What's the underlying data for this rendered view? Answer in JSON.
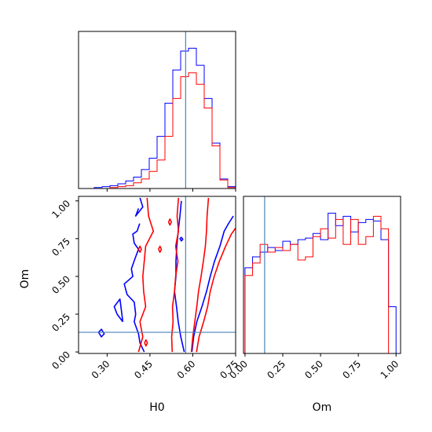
{
  "chart_data": {
    "type": "corner",
    "parameters": [
      "H0",
      "Om"
    ],
    "xlabels": {
      "H0": "H0",
      "Om": "Om"
    },
    "ylabels": {
      "Om": "Om"
    },
    "ranges": {
      "H0": [
        0.2,
        0.75
      ],
      "Om": [
        -0.01,
        1.03
      ]
    },
    "ticks": {
      "H0": {
        "values": [
          0.3,
          0.45,
          0.6,
          0.75
        ],
        "labels": [
          "0.30",
          "0.45",
          "0.60",
          "0.75"
        ]
      },
      "Om": {
        "values": [
          0.0,
          0.25,
          0.5,
          0.75,
          1.0
        ],
        "labels": [
          "0.00",
          "0.25",
          "0.50",
          "0.75",
          "1.00"
        ]
      }
    },
    "truth": {
      "H0": 0.575,
      "Om": 0.13
    },
    "colors": {
      "blue": "#0000ff",
      "red": "#ff0000",
      "truth": "#4a84b8"
    },
    "histograms": {
      "H0": {
        "bin_edges": [
          0.2,
          0.2275,
          0.255,
          0.2825,
          0.31,
          0.3375,
          0.365,
          0.3925,
          0.42,
          0.4475,
          0.475,
          0.5025,
          0.53,
          0.5575,
          0.585,
          0.6125,
          0.64,
          0.6675,
          0.695,
          0.7225,
          0.75
        ],
        "series": [
          {
            "color": "blue",
            "counts": [
              0,
              0,
              1,
              2,
              3,
              5,
              8,
              12,
              20,
              32,
              55,
              90,
              125,
              145,
              148,
              130,
              95,
              48,
              10,
              2
            ]
          },
          {
            "color": "red",
            "counts": [
              0,
              0,
              0,
              0,
              1,
              2,
              3,
              6,
              10,
              18,
              30,
              55,
              95,
              118,
              122,
              110,
              85,
              45,
              9,
              1
            ]
          }
        ]
      },
      "Om": {
        "bin_edges": [
          0.0,
          0.05,
          0.1,
          0.15,
          0.2,
          0.25,
          0.3,
          0.35,
          0.4,
          0.45,
          0.5,
          0.55,
          0.6,
          0.65,
          0.7,
          0.75,
          0.8,
          0.85,
          0.9,
          0.95,
          1.0
        ],
        "series": [
          {
            "color": "blue",
            "counts": [
              55,
              62,
              65,
              68,
              66,
              72,
              70,
              73,
              74,
              77,
              73,
              90,
              82,
              88,
              78,
              84,
              86,
              85,
              73,
              30
            ]
          },
          {
            "color": "red",
            "counts": [
              50,
              58,
              70,
              65,
              68,
              66,
              70,
              60,
              62,
              75,
              80,
              74,
              86,
              70,
              86,
              70,
              75,
              88,
              80,
              0
            ]
          }
        ]
      }
    },
    "contours": [
      {
        "color": "blue",
        "lines": [
          [
            [
              0.57,
              0.0
            ],
            [
              0.558,
              0.1
            ],
            [
              0.549,
              0.2
            ],
            [
              0.543,
              0.3
            ],
            [
              0.536,
              0.4
            ],
            [
              0.541,
              0.5
            ],
            [
              0.541,
              0.6
            ],
            [
              0.544,
              0.7
            ],
            [
              0.549,
              0.8
            ],
            [
              0.555,
              0.9
            ],
            [
              0.56,
              1.0
            ]
          ],
          [
            [
              0.597,
              0.0
            ],
            [
              0.603,
              0.1
            ],
            [
              0.614,
              0.2
            ],
            [
              0.632,
              0.3
            ],
            [
              0.648,
              0.4
            ],
            [
              0.661,
              0.5
            ],
            [
              0.676,
              0.6
            ],
            [
              0.695,
              0.7
            ],
            [
              0.71,
              0.8
            ],
            [
              0.725,
              0.85
            ],
            [
              0.742,
              0.9
            ]
          ],
          [
            [
              0.414,
              0.85
            ],
            [
              0.405,
              0.8
            ],
            [
              0.39,
              0.78
            ],
            [
              0.395,
              0.72
            ],
            [
              0.41,
              0.68
            ],
            [
              0.398,
              0.62
            ],
            [
              0.385,
              0.55
            ],
            [
              0.39,
              0.5
            ],
            [
              0.36,
              0.45
            ],
            [
              0.37,
              0.38
            ],
            [
              0.395,
              0.33
            ],
            [
              0.4,
              0.25
            ],
            [
              0.395,
              0.2
            ],
            [
              0.41,
              0.12
            ],
            [
              0.415,
              0.06
            ],
            [
              0.43,
              0.0
            ]
          ],
          [
            [
              0.355,
              0.2
            ],
            [
              0.335,
              0.25
            ],
            [
              0.325,
              0.3
            ],
            [
              0.345,
              0.35
            ],
            [
              0.355,
              0.2
            ]
          ],
          [
            [
              0.27,
              0.13
            ],
            [
              0.28,
              0.1
            ],
            [
              0.29,
              0.12
            ],
            [
              0.28,
              0.15
            ],
            [
              0.27,
              0.13
            ]
          ],
          [
            [
              0.56,
              0.76
            ],
            [
              0.565,
              0.745
            ],
            [
              0.56,
              0.735
            ],
            [
              0.555,
              0.75
            ],
            [
              0.56,
              0.76
            ]
          ],
          [
            [
              0.41,
              0.95
            ],
            [
              0.4,
              0.9
            ],
            [
              0.425,
              0.96
            ],
            [
              0.415,
              1.02
            ]
          ]
        ]
      },
      {
        "color": "red",
        "lines": [
          [
            [
              0.595,
              0.0
            ],
            [
              0.6,
              0.1
            ],
            [
              0.607,
              0.2
            ],
            [
              0.614,
              0.3
            ],
            [
              0.62,
              0.4
            ],
            [
              0.629,
              0.5
            ],
            [
              0.637,
              0.6
            ],
            [
              0.644,
              0.7
            ],
            [
              0.648,
              0.8
            ],
            [
              0.65,
              0.9
            ],
            [
              0.655,
              1.02
            ]
          ],
          [
            [
              0.613,
              0.0
            ],
            [
              0.622,
              0.1
            ],
            [
              0.638,
              0.2
            ],
            [
              0.652,
              0.3
            ],
            [
              0.661,
              0.4
            ],
            [
              0.675,
              0.5
            ],
            [
              0.693,
              0.6
            ],
            [
              0.715,
              0.7
            ],
            [
              0.735,
              0.78
            ],
            [
              0.75,
              0.82
            ]
          ],
          [
            [
              0.41,
              0.0
            ],
            [
              0.425,
              0.1
            ],
            [
              0.415,
              0.2
            ],
            [
              0.435,
              0.3
            ],
            [
              0.428,
              0.4
            ],
            [
              0.425,
              0.5
            ],
            [
              0.43,
              0.6
            ],
            [
              0.435,
              0.7
            ],
            [
              0.462,
              0.8
            ],
            [
              0.445,
              0.9
            ],
            [
              0.44,
              1.02
            ]
          ],
          [
            [
              0.528,
              0.0
            ],
            [
              0.526,
              0.1
            ],
            [
              0.531,
              0.2
            ],
            [
              0.529,
              0.3
            ],
            [
              0.536,
              0.4
            ],
            [
              0.54,
              0.5
            ],
            [
              0.548,
              0.6
            ],
            [
              0.54,
              0.7
            ],
            [
              0.55,
              0.8
            ],
            [
              0.545,
              0.9
            ],
            [
              0.55,
              1.02
            ]
          ],
          [
            [
              0.431,
              0.06
            ],
            [
              0.436,
              0.08
            ],
            [
              0.441,
              0.06
            ],
            [
              0.436,
              0.04
            ],
            [
              0.431,
              0.06
            ]
          ],
          [
            [
              0.41,
              0.68
            ],
            [
              0.415,
              0.7
            ],
            [
              0.42,
              0.68
            ],
            [
              0.415,
              0.66
            ],
            [
              0.41,
              0.68
            ]
          ],
          [
            [
              0.48,
              0.68
            ],
            [
              0.485,
              0.7
            ],
            [
              0.49,
              0.68
            ],
            [
              0.485,
              0.66
            ],
            [
              0.48,
              0.68
            ]
          ],
          [
            [
              0.515,
              0.86
            ],
            [
              0.52,
              0.88
            ],
            [
              0.525,
              0.86
            ],
            [
              0.52,
              0.84
            ],
            [
              0.515,
              0.86
            ]
          ]
        ]
      }
    ]
  }
}
